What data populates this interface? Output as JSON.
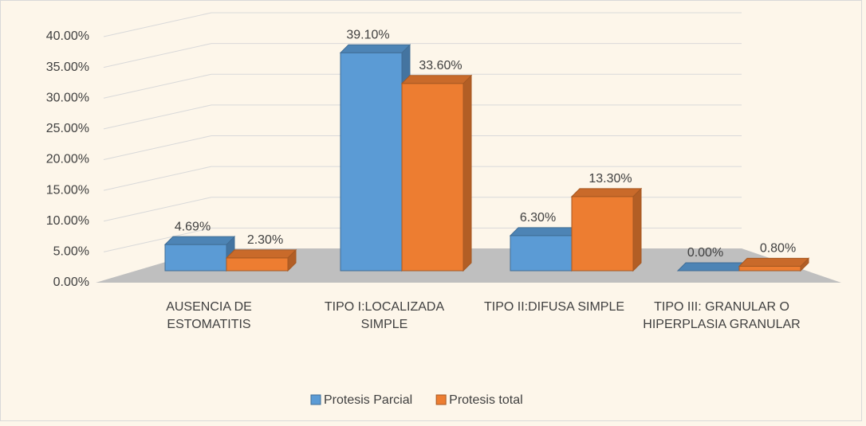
{
  "chart_data": {
    "type": "bar3d",
    "categories": [
      "AUSENCIA DE ESTOMATITIS",
      "TIPO I:LOCALIZADA SIMPLE",
      "TIPO II:DIFUSA SIMPLE",
      "TIPO III: GRANULAR O HIPERPLASIA GRANULAR"
    ],
    "series": [
      {
        "name": "Protesis Parcial",
        "color": "#5b9bd5",
        "values": [
          4.69,
          39.1,
          6.3,
          0
        ],
        "value_labels": [
          "4.69%",
          "39.10%",
          "6.30%",
          "0.00%"
        ]
      },
      {
        "name": "Protesis total",
        "color": "#ed7d31",
        "values": [
          2.3,
          33.6,
          13.3,
          0.8
        ],
        "value_labels": [
          "2.30%",
          "33.60%",
          "13.30%",
          "0.80%"
        ]
      }
    ],
    "ylim": [
      0,
      40
    ],
    "yticks": [
      {
        "value": 0,
        "label": "0.00%"
      },
      {
        "value": 5,
        "label": "5.00%"
      },
      {
        "value": 10,
        "label": "10.00%"
      },
      {
        "value": 15,
        "label": "15.00%"
      },
      {
        "value": 20,
        "label": "20.00%"
      },
      {
        "value": 25,
        "label": "25.00%"
      },
      {
        "value": 30,
        "label": "30.00%"
      },
      {
        "value": 35,
        "label": "35.00%"
      },
      {
        "value": 40,
        "label": "40.00%"
      }
    ],
    "grid": true,
    "legend": "bottom"
  }
}
